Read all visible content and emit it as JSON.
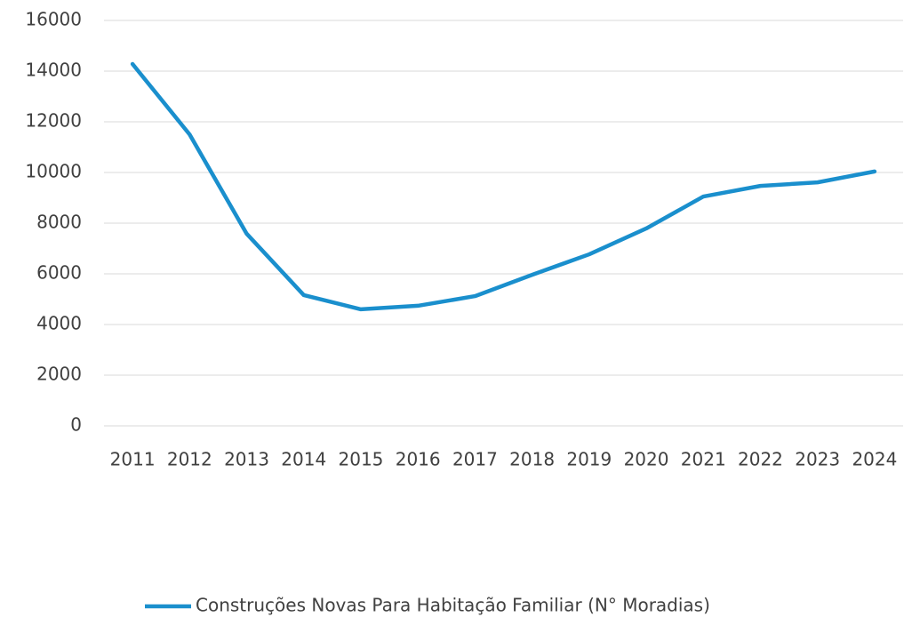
{
  "chart_data": {
    "type": "line",
    "categories": [
      "2011",
      "2012",
      "2013",
      "2014",
      "2015",
      "2016",
      "2017",
      "2018",
      "2019",
      "2020",
      "2021",
      "2022",
      "2023",
      "2024"
    ],
    "series": [
      {
        "name": "Construções Novas Para Habitação Familiar (N° Moradias)",
        "color": "#1a8fcd",
        "values": [
          14280,
          11500,
          7580,
          5160,
          4600,
          4740,
          5120,
          5960,
          6770,
          7790,
          9050,
          9470,
          9610,
          10040
        ]
      }
    ],
    "ylim": [
      0,
      16000
    ],
    "yticks": [
      0,
      2000,
      4000,
      6000,
      8000,
      10000,
      12000,
      14000,
      16000
    ],
    "grid": true,
    "legend": "bottom"
  }
}
